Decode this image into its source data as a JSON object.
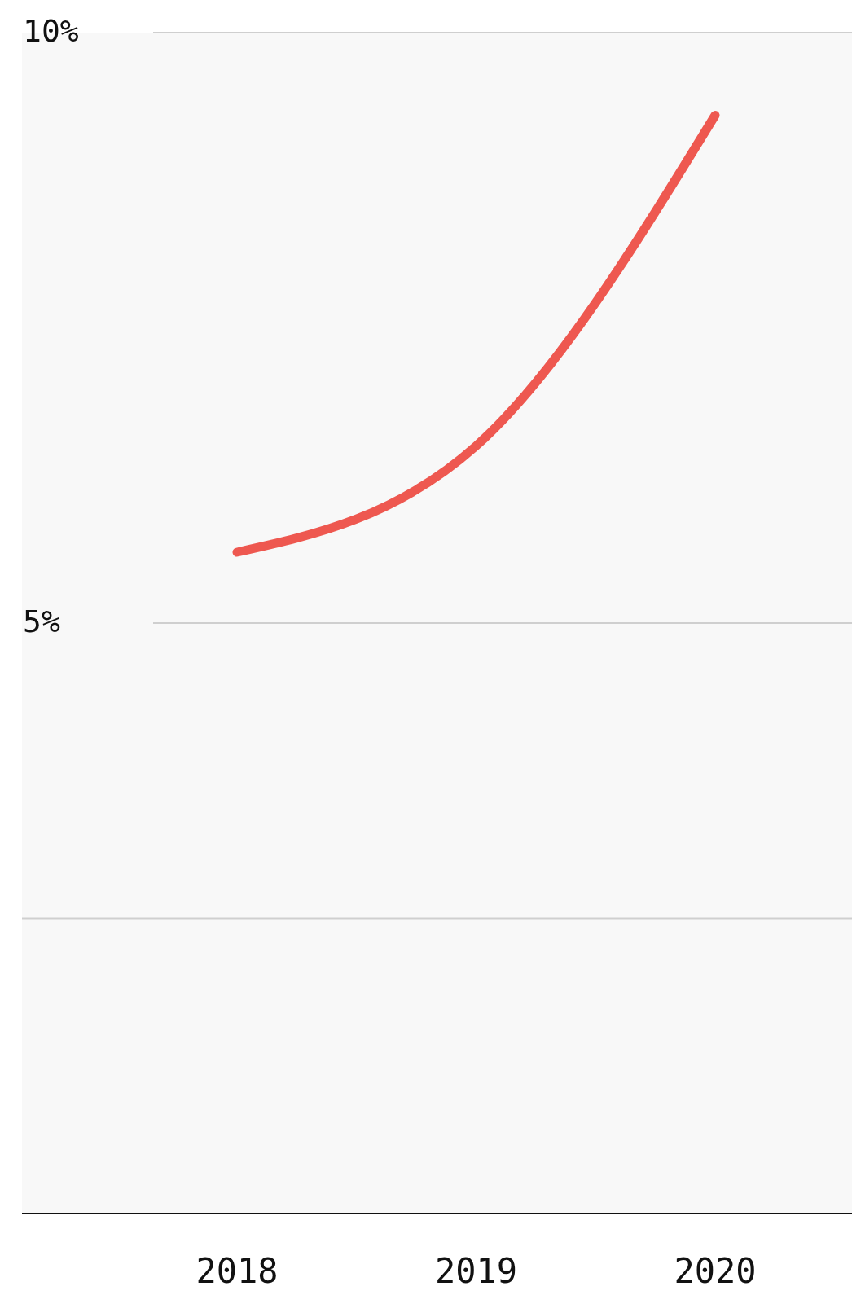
{
  "chart_data": {
    "type": "line",
    "categories": [
      "2018",
      "2019",
      "2020"
    ],
    "series": [
      {
        "color": "#ee5850",
        "values": [
          5.6,
          6.5,
          9.3
        ]
      }
    ],
    "ylim": [
      0,
      10
    ],
    "yticks": [
      {
        "value": 0,
        "label": null
      },
      {
        "value": 2.5,
        "label": null
      },
      {
        "value": 5,
        "label": "5%"
      },
      {
        "value": 10,
        "label": "10%"
      }
    ],
    "grid": "y",
    "marker": "none",
    "line_style": "solid"
  }
}
